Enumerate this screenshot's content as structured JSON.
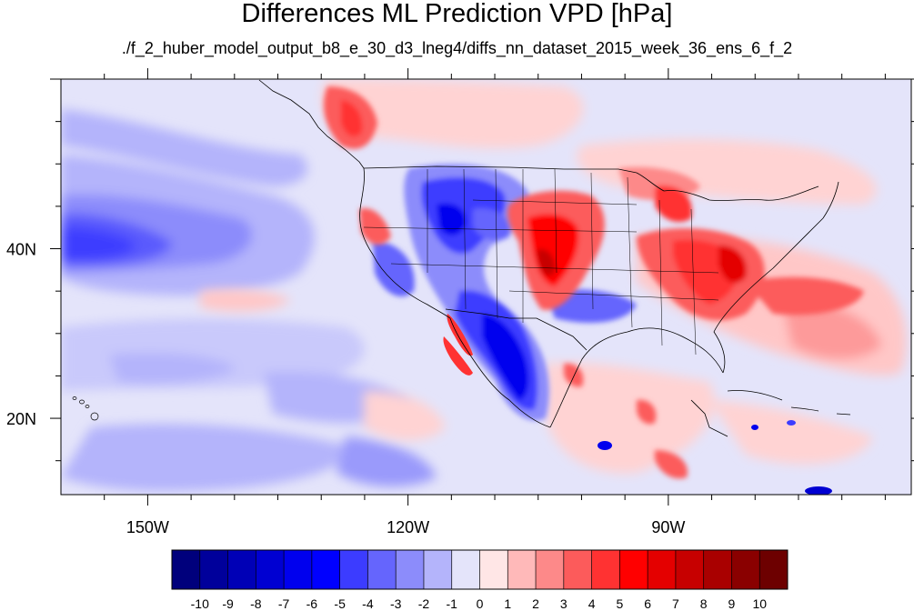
{
  "header": {
    "title": "Differences ML Prediction VPD [hPa]",
    "subtitle": "./f_2_huber_model_output_b8_e_30_d3_lneg4/diffs_nn_dataset_2015_week_36_ens_6_f_2"
  },
  "map": {
    "projection": "cylindrical equidistant",
    "lon_range": [
      -160,
      -62
    ],
    "lat_range": [
      11,
      60
    ],
    "lon_labels": [
      {
        "lon": -150,
        "text": "150W"
      },
      {
        "lon": -120,
        "text": "120W"
      },
      {
        "lon": -90,
        "text": "90W"
      }
    ],
    "lat_labels": [
      {
        "lat": 40,
        "text": "40N"
      },
      {
        "lat": 20,
        "text": "20N"
      }
    ],
    "features": [
      {
        "name": "pacific-blue-band",
        "lon": -158,
        "lat": 40,
        "value": -5
      },
      {
        "name": "rockies-blue-core",
        "lon": -113,
        "lat": 42,
        "value": -6
      },
      {
        "name": "mexico-blue-core",
        "lon": -105,
        "lat": 27,
        "value": -6
      },
      {
        "name": "plains-red-core",
        "lon": -101,
        "lat": 39,
        "value": 6
      },
      {
        "name": "southeast-red-core",
        "lon": -82,
        "lat": 37,
        "value": 5
      },
      {
        "name": "great-lakes-red",
        "lon": -88,
        "lat": 43,
        "value": 4
      },
      {
        "name": "bc-coast-red",
        "lon": -128,
        "lat": 55,
        "value": 4
      },
      {
        "name": "baja-red-streak",
        "lon": -112,
        "lat": 31,
        "value": 4
      },
      {
        "name": "central-america-red",
        "lon": -90,
        "lat": 17,
        "value": 3
      }
    ]
  },
  "colorbar": {
    "labels": [
      "-10",
      "-9",
      "-8",
      "-7",
      "-6",
      "-5",
      "-4",
      "-3",
      "-2",
      "-1",
      "0",
      "1",
      "2",
      "3",
      "4",
      "5",
      "6",
      "7",
      "8",
      "9",
      "10"
    ],
    "colors": [
      "#00007c",
      "#00009b",
      "#0000b6",
      "#0000d2",
      "#0000ee",
      "#0000ff",
      "#3c3cff",
      "#6565fd",
      "#8c8cfb",
      "#b4b4fb",
      "#e4e4fa",
      "#ffe6e6",
      "#ffb9b9",
      "#fd8989",
      "#fc5b5b",
      "#ff3232",
      "#ff0000",
      "#e40000",
      "#c70000",
      "#a90000",
      "#8a0000",
      "#6d0000"
    ]
  }
}
